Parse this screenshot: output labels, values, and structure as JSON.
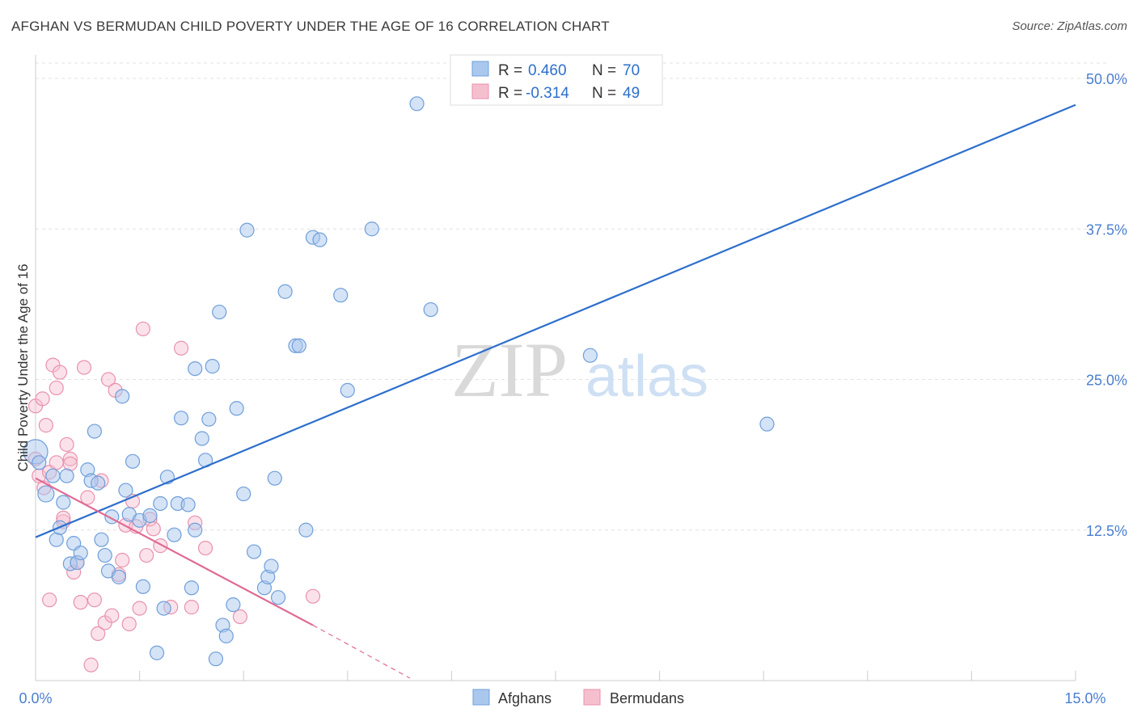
{
  "header": {
    "title": "AFGHAN VS BERMUDAN CHILD POVERTY UNDER THE AGE OF 16 CORRELATION CHART",
    "source": "Source: ZipAtlas.com"
  },
  "watermark": {
    "zip": "ZIP",
    "atlas": "atlas"
  },
  "legend_top": {
    "rows": [
      {
        "r_label": "R = ",
        "r_value": "0.460",
        "n_label": "N = ",
        "n_value": "70"
      },
      {
        "r_label": "R = ",
        "r_value": "-0.314",
        "n_label": "N = ",
        "n_value": "49"
      }
    ]
  },
  "legend_bottom": {
    "items": [
      "Afghans",
      "Bermudans"
    ]
  },
  "colors": {
    "afghan_fill": "#aac8ee",
    "afghan_stroke": "#6f9fda",
    "afghan_line": "#2d6fcc",
    "bermudan_fill": "#f6bfd0",
    "bermudan_stroke": "#e892ae",
    "bermudan_line": "#e06a94",
    "axis_text": "#4a7ecf",
    "grid": "#e1e1e1"
  },
  "chart_data": {
    "type": "scatter",
    "title": "AFGHAN VS BERMUDAN CHILD POVERTY UNDER THE AGE OF 16 CORRELATION CHART",
    "xlabel": "",
    "ylabel": "Child Poverty Under the Age of 16",
    "xlim": [
      0,
      15
    ],
    "ylim": [
      0,
      50
    ],
    "x_ticks": [
      "0.0%",
      "15.0%"
    ],
    "y_ticks": [
      {
        "value": 12.5,
        "label": "12.5%"
      },
      {
        "value": 25,
        "label": "25.0%"
      },
      {
        "value": 37.5,
        "label": "37.5%"
      },
      {
        "value": 50,
        "label": "50.0%"
      }
    ],
    "grid": true,
    "legend_position": "top-center",
    "series": [
      {
        "name": "Afghans",
        "r": 0.46,
        "n": 70,
        "trend": {
          "x": [
            0,
            15
          ],
          "y": [
            11.9,
            47.8
          ]
        },
        "points": [
          [
            0.0,
            19.0
          ],
          [
            0.05,
            18.1
          ],
          [
            0.15,
            15.5
          ],
          [
            0.25,
            17.0
          ],
          [
            0.3,
            11.7
          ],
          [
            0.35,
            12.7
          ],
          [
            0.4,
            14.8
          ],
          [
            0.45,
            17.0
          ],
          [
            0.5,
            9.7
          ],
          [
            0.55,
            11.4
          ],
          [
            0.6,
            9.8
          ],
          [
            0.65,
            10.6
          ],
          [
            0.75,
            17.5
          ],
          [
            0.8,
            16.6
          ],
          [
            0.85,
            20.7
          ],
          [
            0.9,
            16.4
          ],
          [
            0.95,
            11.7
          ],
          [
            1.0,
            10.4
          ],
          [
            1.05,
            9.1
          ],
          [
            1.1,
            13.6
          ],
          [
            1.2,
            8.6
          ],
          [
            1.25,
            23.6
          ],
          [
            1.3,
            15.8
          ],
          [
            1.35,
            13.8
          ],
          [
            1.4,
            18.2
          ],
          [
            1.5,
            13.3
          ],
          [
            1.55,
            7.8
          ],
          [
            1.65,
            13.7
          ],
          [
            1.75,
            2.3
          ],
          [
            1.8,
            14.7
          ],
          [
            1.85,
            6.0
          ],
          [
            1.9,
            16.9
          ],
          [
            2.0,
            12.1
          ],
          [
            2.05,
            14.7
          ],
          [
            2.1,
            21.8
          ],
          [
            2.2,
            14.6
          ],
          [
            2.25,
            7.7
          ],
          [
            2.3,
            12.5
          ],
          [
            2.3,
            25.9
          ],
          [
            2.4,
            20.1
          ],
          [
            2.45,
            18.3
          ],
          [
            2.5,
            21.7
          ],
          [
            2.55,
            26.1
          ],
          [
            2.6,
            1.8
          ],
          [
            2.65,
            30.6
          ],
          [
            2.7,
            4.6
          ],
          [
            2.75,
            3.7
          ],
          [
            2.85,
            6.3
          ],
          [
            2.9,
            22.6
          ],
          [
            3.0,
            15.5
          ],
          [
            3.05,
            37.4
          ],
          [
            3.15,
            10.7
          ],
          [
            3.3,
            7.7
          ],
          [
            3.35,
            8.6
          ],
          [
            3.4,
            9.5
          ],
          [
            3.45,
            16.8
          ],
          [
            3.5,
            6.9
          ],
          [
            3.6,
            32.3
          ],
          [
            3.75,
            27.8
          ],
          [
            3.8,
            27.8
          ],
          [
            3.9,
            12.5
          ],
          [
            4.0,
            36.8
          ],
          [
            4.1,
            36.6
          ],
          [
            4.4,
            32.0
          ],
          [
            4.5,
            24.1
          ],
          [
            4.85,
            37.5
          ],
          [
            5.5,
            47.9
          ],
          [
            5.7,
            30.8
          ],
          [
            8.0,
            27.0
          ],
          [
            10.55,
            21.3
          ]
        ]
      },
      {
        "name": "Bermudans",
        "r": -0.314,
        "n": 49,
        "trend": {
          "x": [
            0,
            4
          ],
          "y": [
            16.8,
            4.6
          ]
        },
        "trend_dashed": {
          "x": [
            4,
            5.4
          ],
          "y": [
            4.6,
            0.2
          ]
        },
        "points": [
          [
            0.0,
            22.8
          ],
          [
            0.0,
            18.4
          ],
          [
            0.05,
            17.0
          ],
          [
            0.1,
            23.4
          ],
          [
            0.12,
            16.0
          ],
          [
            0.15,
            21.2
          ],
          [
            0.2,
            17.3
          ],
          [
            0.2,
            6.7
          ],
          [
            0.25,
            26.2
          ],
          [
            0.3,
            24.3
          ],
          [
            0.3,
            18.1
          ],
          [
            0.35,
            25.6
          ],
          [
            0.4,
            13.2
          ],
          [
            0.4,
            13.5
          ],
          [
            0.45,
            19.6
          ],
          [
            0.5,
            18.4
          ],
          [
            0.5,
            18.0
          ],
          [
            0.55,
            9.0
          ],
          [
            0.6,
            9.8
          ],
          [
            0.65,
            6.5
          ],
          [
            0.7,
            26.0
          ],
          [
            0.75,
            15.2
          ],
          [
            0.8,
            1.3
          ],
          [
            0.85,
            6.7
          ],
          [
            0.9,
            3.9
          ],
          [
            0.95,
            16.6
          ],
          [
            1.0,
            4.8
          ],
          [
            1.05,
            25.0
          ],
          [
            1.1,
            5.4
          ],
          [
            1.15,
            24.1
          ],
          [
            1.2,
            8.8
          ],
          [
            1.25,
            10.0
          ],
          [
            1.3,
            12.9
          ],
          [
            1.35,
            4.7
          ],
          [
            1.4,
            14.9
          ],
          [
            1.45,
            12.8
          ],
          [
            1.5,
            6.0
          ],
          [
            1.55,
            29.2
          ],
          [
            1.6,
            10.4
          ],
          [
            1.65,
            13.4
          ],
          [
            1.7,
            12.6
          ],
          [
            1.8,
            11.2
          ],
          [
            1.95,
            6.1
          ],
          [
            2.1,
            27.6
          ],
          [
            2.25,
            6.1
          ],
          [
            2.3,
            13.1
          ],
          [
            2.45,
            11.0
          ],
          [
            2.95,
            5.3
          ],
          [
            4.0,
            7.0
          ]
        ]
      }
    ]
  }
}
